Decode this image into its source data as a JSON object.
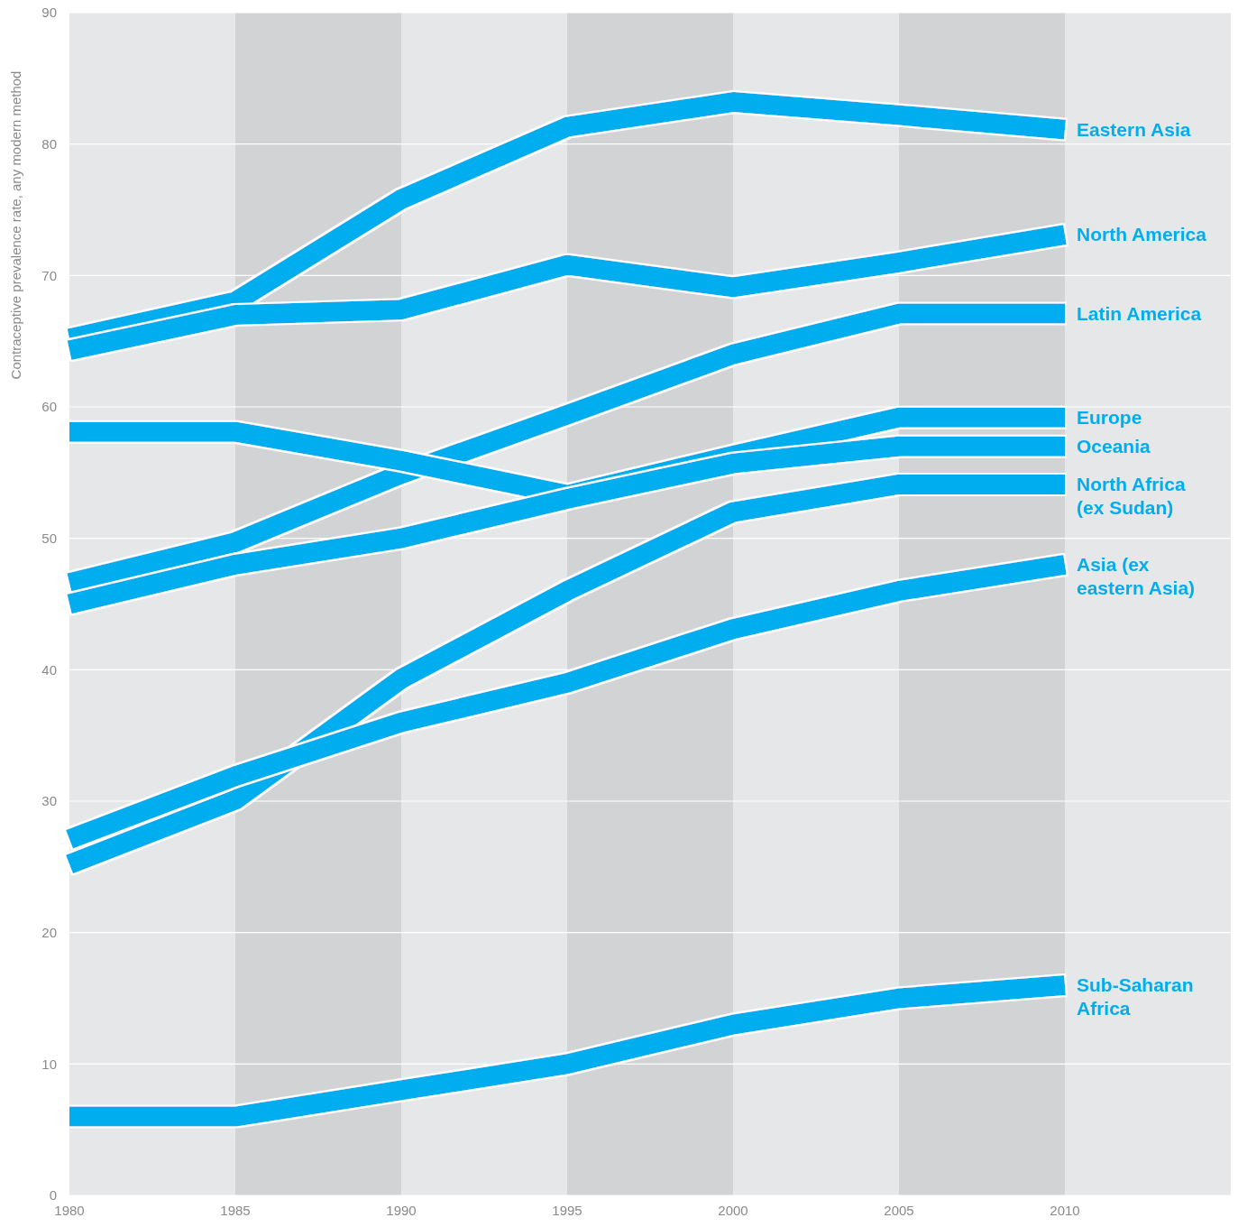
{
  "chart_data": {
    "type": "line",
    "ylabel": "Contraceptive prevalence rate, any modern method",
    "x": [
      1980,
      1985,
      1990,
      1995,
      2000,
      2005,
      2010
    ],
    "xlim": [
      1980,
      2015
    ],
    "xticks": [
      1980,
      1985,
      1990,
      1995,
      2000,
      2005,
      2010
    ],
    "ylim": [
      0,
      90
    ],
    "yticks": [
      0,
      10,
      20,
      30,
      40,
      50,
      60,
      70,
      80,
      90
    ],
    "grid": "y",
    "marker": "none",
    "line_style": "solid",
    "bands": [
      {
        "axis": "x",
        "from": 1985,
        "to": 1990,
        "color": "#d2d3d5"
      },
      {
        "axis": "x",
        "from": 1995,
        "to": 2000,
        "color": "#d2d3d5"
      },
      {
        "axis": "x",
        "from": 2005,
        "to": 2010,
        "color": "#d2d3d5"
      }
    ],
    "series": [
      {
        "name": "Eastern Asia",
        "color": "#00aeef",
        "values": [
          65.2,
          68.0,
          75.8,
          81.3,
          83.2,
          82.2,
          81.1
        ]
      },
      {
        "name": "North America",
        "color": "#00aeef",
        "values": [
          64.3,
          67.0,
          67.4,
          70.8,
          69.1,
          71.0,
          73.1
        ]
      },
      {
        "name": "Latin America",
        "color": "#00aeef",
        "values": [
          46.6,
          49.7,
          54.9,
          59.4,
          64.0,
          67.1,
          67.1
        ]
      },
      {
        "name": "Europe",
        "color": "#00aeef",
        "values": [
          58.1,
          58.1,
          55.9,
          53.3,
          56.3,
          59.2,
          59.2
        ]
      },
      {
        "name": "Oceania",
        "color": "#00aeef",
        "values": [
          45.0,
          48.0,
          50.0,
          53.0,
          55.7,
          57.0,
          57.0
        ]
      },
      {
        "name": "North Africa (ex Sudan)",
        "color": "#00aeef",
        "values": [
          25.2,
          30.1,
          39.3,
          46.0,
          52.0,
          54.1,
          54.1
        ]
      },
      {
        "name": "Asia (ex eastern Asia)",
        "color": "#00aeef",
        "values": [
          27.1,
          31.9,
          36.0,
          39.0,
          43.1,
          46.0,
          48.0
        ]
      },
      {
        "name": "Sub-Saharan Africa",
        "color": "#00aeef",
        "values": [
          6.0,
          6.0,
          8.0,
          10.0,
          13.0,
          15.0,
          16.0
        ]
      }
    ]
  }
}
